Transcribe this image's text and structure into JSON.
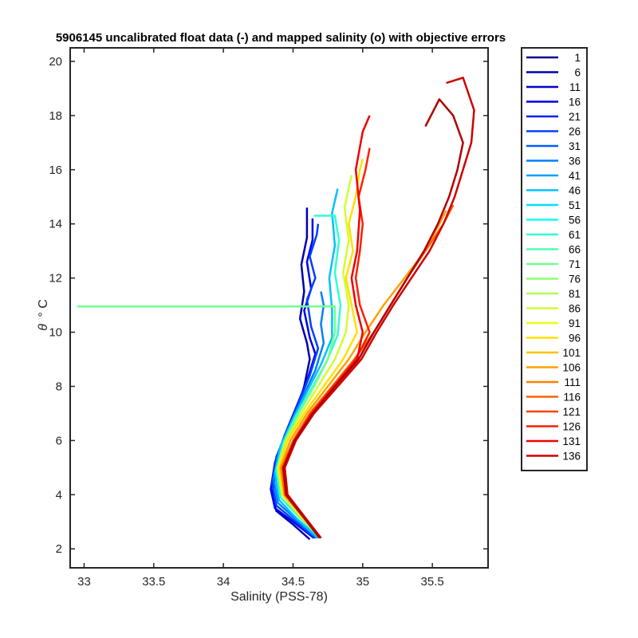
{
  "chart_data": {
    "type": "line",
    "title": "5906145 uncalibrated float data (-) and mapped salinity (o) with objective errors",
    "xlabel": "Salinity (PSS-78)",
    "ylabel": "θ ° C",
    "ylabel_parts": {
      "symbol": "θ",
      "unit": "° C"
    },
    "xlim": [
      32.9,
      35.9
    ],
    "ylim": [
      1.3,
      20.5
    ],
    "xticks": [
      33,
      33.5,
      34,
      34.5,
      35,
      35.5
    ],
    "xtick_labels": [
      "33",
      "33.5",
      "34",
      "34.5",
      "35",
      "35.5"
    ],
    "yticks": [
      2,
      4,
      6,
      8,
      10,
      12,
      14,
      16,
      18,
      20
    ],
    "ytick_labels": [
      "2",
      "4",
      "6",
      "8",
      "10",
      "12",
      "14",
      "16",
      "18",
      "20"
    ],
    "grid": false,
    "legend": "outside-right",
    "colormap": "jet",
    "series": [
      {
        "name": "1",
        "color": "#00008f"
      },
      {
        "name": "6",
        "color": "#0000af"
      },
      {
        "name": "11",
        "color": "#0000d0"
      },
      {
        "name": "16",
        "color": "#0000f0"
      },
      {
        "name": "21",
        "color": "#0020ff"
      },
      {
        "name": "26",
        "color": "#0040ff"
      },
      {
        "name": "31",
        "color": "#0060ff"
      },
      {
        "name": "36",
        "color": "#0080ff"
      },
      {
        "name": "41",
        "color": "#00a0ff"
      },
      {
        "name": "46",
        "color": "#00c0ff"
      },
      {
        "name": "51",
        "color": "#00e0ff"
      },
      {
        "name": "56",
        "color": "#10ffef"
      },
      {
        "name": "61",
        "color": "#30ffcf"
      },
      {
        "name": "66",
        "color": "#50ffaf"
      },
      {
        "name": "71",
        "color": "#70ff8f"
      },
      {
        "name": "76",
        "color": "#8fff70"
      },
      {
        "name": "81",
        "color": "#afff50"
      },
      {
        "name": "86",
        "color": "#cfff30"
      },
      {
        "name": "91",
        "color": "#efff10"
      },
      {
        "name": "96",
        "color": "#ffe000"
      },
      {
        "name": "101",
        "color": "#ffc000"
      },
      {
        "name": "106",
        "color": "#ffa000"
      },
      {
        "name": "111",
        "color": "#ff8000"
      },
      {
        "name": "116",
        "color": "#ff6000"
      },
      {
        "name": "121",
        "color": "#ff4000"
      },
      {
        "name": "126",
        "color": "#ff2000"
      },
      {
        "name": "131",
        "color": "#f00000"
      },
      {
        "name": "136",
        "color": "#d00000"
      }
    ],
    "profiles": [
      {
        "color": "#0000af",
        "points": [
          [
            34.62,
            2.35
          ],
          [
            34.5,
            2.9
          ],
          [
            34.38,
            3.4
          ],
          [
            34.35,
            4.0
          ],
          [
            34.38,
            5.0
          ],
          [
            34.45,
            6.0
          ],
          [
            34.52,
            7.0
          ],
          [
            34.58,
            8.0
          ],
          [
            34.62,
            9.0
          ],
          [
            34.6,
            9.6
          ],
          [
            34.55,
            10.5
          ],
          [
            34.58,
            11.5
          ],
          [
            34.56,
            12.5
          ],
          [
            34.6,
            13.5
          ],
          [
            34.6,
            14.6
          ]
        ]
      },
      {
        "color": "#0000f0",
        "points": [
          [
            34.65,
            2.4
          ],
          [
            34.5,
            3.0
          ],
          [
            34.37,
            3.5
          ],
          [
            34.34,
            4.2
          ],
          [
            34.37,
            5.2
          ],
          [
            34.44,
            6.2
          ],
          [
            34.52,
            7.2
          ],
          [
            34.6,
            8.2
          ],
          [
            34.66,
            9.2
          ],
          [
            34.62,
            9.8
          ],
          [
            34.58,
            10.8
          ],
          [
            34.63,
            11.6
          ],
          [
            34.6,
            12.6
          ],
          [
            34.64,
            13.4
          ],
          [
            34.64,
            14.2
          ]
        ]
      },
      {
        "color": "#0040ff",
        "points": [
          [
            34.66,
            2.4
          ],
          [
            34.52,
            3.0
          ],
          [
            34.38,
            3.6
          ],
          [
            34.35,
            4.4
          ],
          [
            34.38,
            5.4
          ],
          [
            34.46,
            6.4
          ],
          [
            34.54,
            7.4
          ],
          [
            34.62,
            8.4
          ],
          [
            34.68,
            9.4
          ],
          [
            34.63,
            10.2
          ],
          [
            34.6,
            11.2
          ],
          [
            34.66,
            12.0
          ],
          [
            34.62,
            12.8
          ],
          [
            34.67,
            13.6
          ],
          [
            34.68,
            14.0
          ]
        ]
      },
      {
        "color": "#0080ff",
        "points": [
          [
            34.67,
            2.4
          ],
          [
            34.52,
            3.1
          ],
          [
            34.39,
            3.7
          ],
          [
            34.36,
            4.6
          ],
          [
            34.4,
            5.6
          ],
          [
            34.48,
            6.6
          ],
          [
            34.57,
            7.6
          ],
          [
            34.66,
            8.6
          ],
          [
            34.72,
            9.6
          ],
          [
            34.7,
            10.3
          ],
          [
            34.72,
            11.0
          ],
          [
            34.7,
            11.5
          ]
        ]
      },
      {
        "color": "#00c0ff",
        "points": [
          [
            34.68,
            2.4
          ],
          [
            34.53,
            3.1
          ],
          [
            34.4,
            3.8
          ],
          [
            34.37,
            4.8
          ],
          [
            34.41,
            5.8
          ],
          [
            34.5,
            6.8
          ],
          [
            34.6,
            7.8
          ],
          [
            34.7,
            8.8
          ],
          [
            34.78,
            9.8
          ],
          [
            34.78,
            10.8
          ],
          [
            34.76,
            12.0
          ],
          [
            34.8,
            13.2
          ],
          [
            34.78,
            14.4
          ],
          [
            34.82,
            15.3
          ]
        ]
      },
      {
        "color": "#30ffcf",
        "points": [
          [
            34.69,
            2.4
          ],
          [
            34.54,
            3.2
          ],
          [
            34.41,
            3.9
          ],
          [
            34.38,
            4.9
          ],
          [
            34.43,
            5.9
          ],
          [
            34.52,
            6.9
          ],
          [
            34.63,
            7.9
          ],
          [
            34.74,
            8.9
          ],
          [
            34.82,
            9.9
          ],
          [
            34.84,
            11.0
          ],
          [
            34.8,
            12.2
          ],
          [
            34.83,
            13.4
          ],
          [
            34.8,
            14.3
          ],
          [
            34.65,
            14.3
          ]
        ]
      },
      {
        "color": "#70ff8f",
        "points": [
          [
            34.7,
            2.4
          ],
          [
            34.55,
            3.2
          ],
          [
            34.42,
            4.0
          ],
          [
            34.39,
            5.0
          ],
          [
            34.44,
            6.0
          ],
          [
            34.54,
            7.0
          ],
          [
            34.65,
            8.0
          ],
          [
            34.75,
            9.0
          ],
          [
            34.8,
            10.0
          ],
          [
            34.8,
            10.95
          ],
          [
            32.95,
            10.95
          ]
        ]
      },
      {
        "color": "#cfff30",
        "points": [
          [
            34.7,
            2.4
          ],
          [
            34.55,
            3.2
          ],
          [
            34.42,
            4.0
          ],
          [
            34.39,
            5.0
          ],
          [
            34.45,
            6.0
          ],
          [
            34.56,
            7.0
          ],
          [
            34.68,
            8.0
          ],
          [
            34.8,
            9.0
          ],
          [
            34.88,
            10.0
          ],
          [
            34.9,
            11.0
          ],
          [
            34.86,
            12.2
          ],
          [
            34.9,
            13.4
          ],
          [
            34.87,
            14.6
          ],
          [
            34.92,
            15.8
          ]
        ]
      },
      {
        "color": "#ffe000",
        "points": [
          [
            34.7,
            2.4
          ],
          [
            34.56,
            3.2
          ],
          [
            34.43,
            4.0
          ],
          [
            34.4,
            5.0
          ],
          [
            34.46,
            6.0
          ],
          [
            34.58,
            7.0
          ],
          [
            34.72,
            8.0
          ],
          [
            34.86,
            9.0
          ],
          [
            34.96,
            10.0
          ],
          [
            34.92,
            11.0
          ],
          [
            34.88,
            12.0
          ],
          [
            34.93,
            13.0
          ],
          [
            34.9,
            14.0
          ],
          [
            34.95,
            15.0
          ],
          [
            34.98,
            16.0
          ],
          [
            35.0,
            16.4
          ]
        ]
      },
      {
        "color": "#ffa000",
        "points": [
          [
            34.7,
            2.4
          ],
          [
            34.57,
            3.2
          ],
          [
            34.44,
            4.0
          ],
          [
            34.41,
            5.0
          ],
          [
            34.48,
            6.0
          ],
          [
            34.6,
            7.0
          ],
          [
            34.75,
            8.0
          ],
          [
            34.9,
            9.0
          ],
          [
            35.02,
            10.0
          ],
          [
            35.15,
            11.0
          ],
          [
            35.3,
            12.0
          ],
          [
            35.45,
            13.0
          ],
          [
            35.55,
            14.0
          ],
          [
            35.6,
            14.5
          ]
        ]
      },
      {
        "color": "#ff6000",
        "points": [
          [
            34.7,
            2.4
          ],
          [
            34.57,
            3.2
          ],
          [
            34.44,
            4.0
          ],
          [
            34.42,
            5.0
          ],
          [
            34.5,
            6.0
          ],
          [
            34.62,
            7.0
          ],
          [
            34.78,
            8.0
          ],
          [
            34.94,
            9.0
          ],
          [
            35.08,
            10.0
          ],
          [
            35.2,
            11.0
          ],
          [
            35.32,
            12.0
          ],
          [
            35.45,
            13.0
          ],
          [
            35.58,
            14.0
          ],
          [
            35.65,
            14.7
          ]
        ]
      },
      {
        "color": "#ff2000",
        "points": [
          [
            34.7,
            2.4
          ],
          [
            34.58,
            3.2
          ],
          [
            34.45,
            4.0
          ],
          [
            34.43,
            5.0
          ],
          [
            34.51,
            6.0
          ],
          [
            34.63,
            7.0
          ],
          [
            34.79,
            8.0
          ],
          [
            34.95,
            9.0
          ],
          [
            35.05,
            10.0
          ],
          [
            34.98,
            11.0
          ],
          [
            34.95,
            12.0
          ],
          [
            34.98,
            13.0
          ],
          [
            35.0,
            14.0
          ],
          [
            34.97,
            15.0
          ],
          [
            35.02,
            16.0
          ],
          [
            35.05,
            16.8
          ]
        ]
      },
      {
        "color": "#f00000",
        "points": [
          [
            34.7,
            2.4
          ],
          [
            34.58,
            3.2
          ],
          [
            34.46,
            4.0
          ],
          [
            34.44,
            5.0
          ],
          [
            34.52,
            6.0
          ],
          [
            34.64,
            7.0
          ],
          [
            34.8,
            8.0
          ],
          [
            34.96,
            9.0
          ],
          [
            35.0,
            10.0
          ],
          [
            34.95,
            11.0
          ],
          [
            34.92,
            12.0
          ],
          [
            34.96,
            13.0
          ],
          [
            34.98,
            14.5
          ],
          [
            34.95,
            16.0
          ],
          [
            35.0,
            17.4
          ],
          [
            35.05,
            18.0
          ]
        ]
      },
      {
        "color": "#d00000",
        "points": [
          [
            34.7,
            2.4
          ],
          [
            34.58,
            3.2
          ],
          [
            34.46,
            4.0
          ],
          [
            34.44,
            5.0
          ],
          [
            34.52,
            6.0
          ],
          [
            34.65,
            7.0
          ],
          [
            34.82,
            8.0
          ],
          [
            34.99,
            9.0
          ],
          [
            35.1,
            10.0
          ],
          [
            35.22,
            11.0
          ],
          [
            35.35,
            12.0
          ],
          [
            35.48,
            13.0
          ],
          [
            35.58,
            14.0
          ],
          [
            35.66,
            15.0
          ],
          [
            35.72,
            16.0
          ],
          [
            35.78,
            17.0
          ],
          [
            35.8,
            18.2
          ],
          [
            35.72,
            19.4
          ],
          [
            35.6,
            19.2
          ]
        ]
      },
      {
        "color": "#b00000",
        "points": [
          [
            34.69,
            2.4
          ],
          [
            34.57,
            3.2
          ],
          [
            34.45,
            4.0
          ],
          [
            34.43,
            5.0
          ],
          [
            34.51,
            6.0
          ],
          [
            34.64,
            7.0
          ],
          [
            34.8,
            8.0
          ],
          [
            34.97,
            9.0
          ],
          [
            35.08,
            10.0
          ],
          [
            35.2,
            11.0
          ],
          [
            35.32,
            12.0
          ],
          [
            35.44,
            13.0
          ],
          [
            35.54,
            14.0
          ],
          [
            35.62,
            15.0
          ],
          [
            35.68,
            16.0
          ],
          [
            35.72,
            17.0
          ],
          [
            35.65,
            18.0
          ],
          [
            35.55,
            18.6
          ],
          [
            35.45,
            17.6
          ]
        ]
      }
    ]
  }
}
